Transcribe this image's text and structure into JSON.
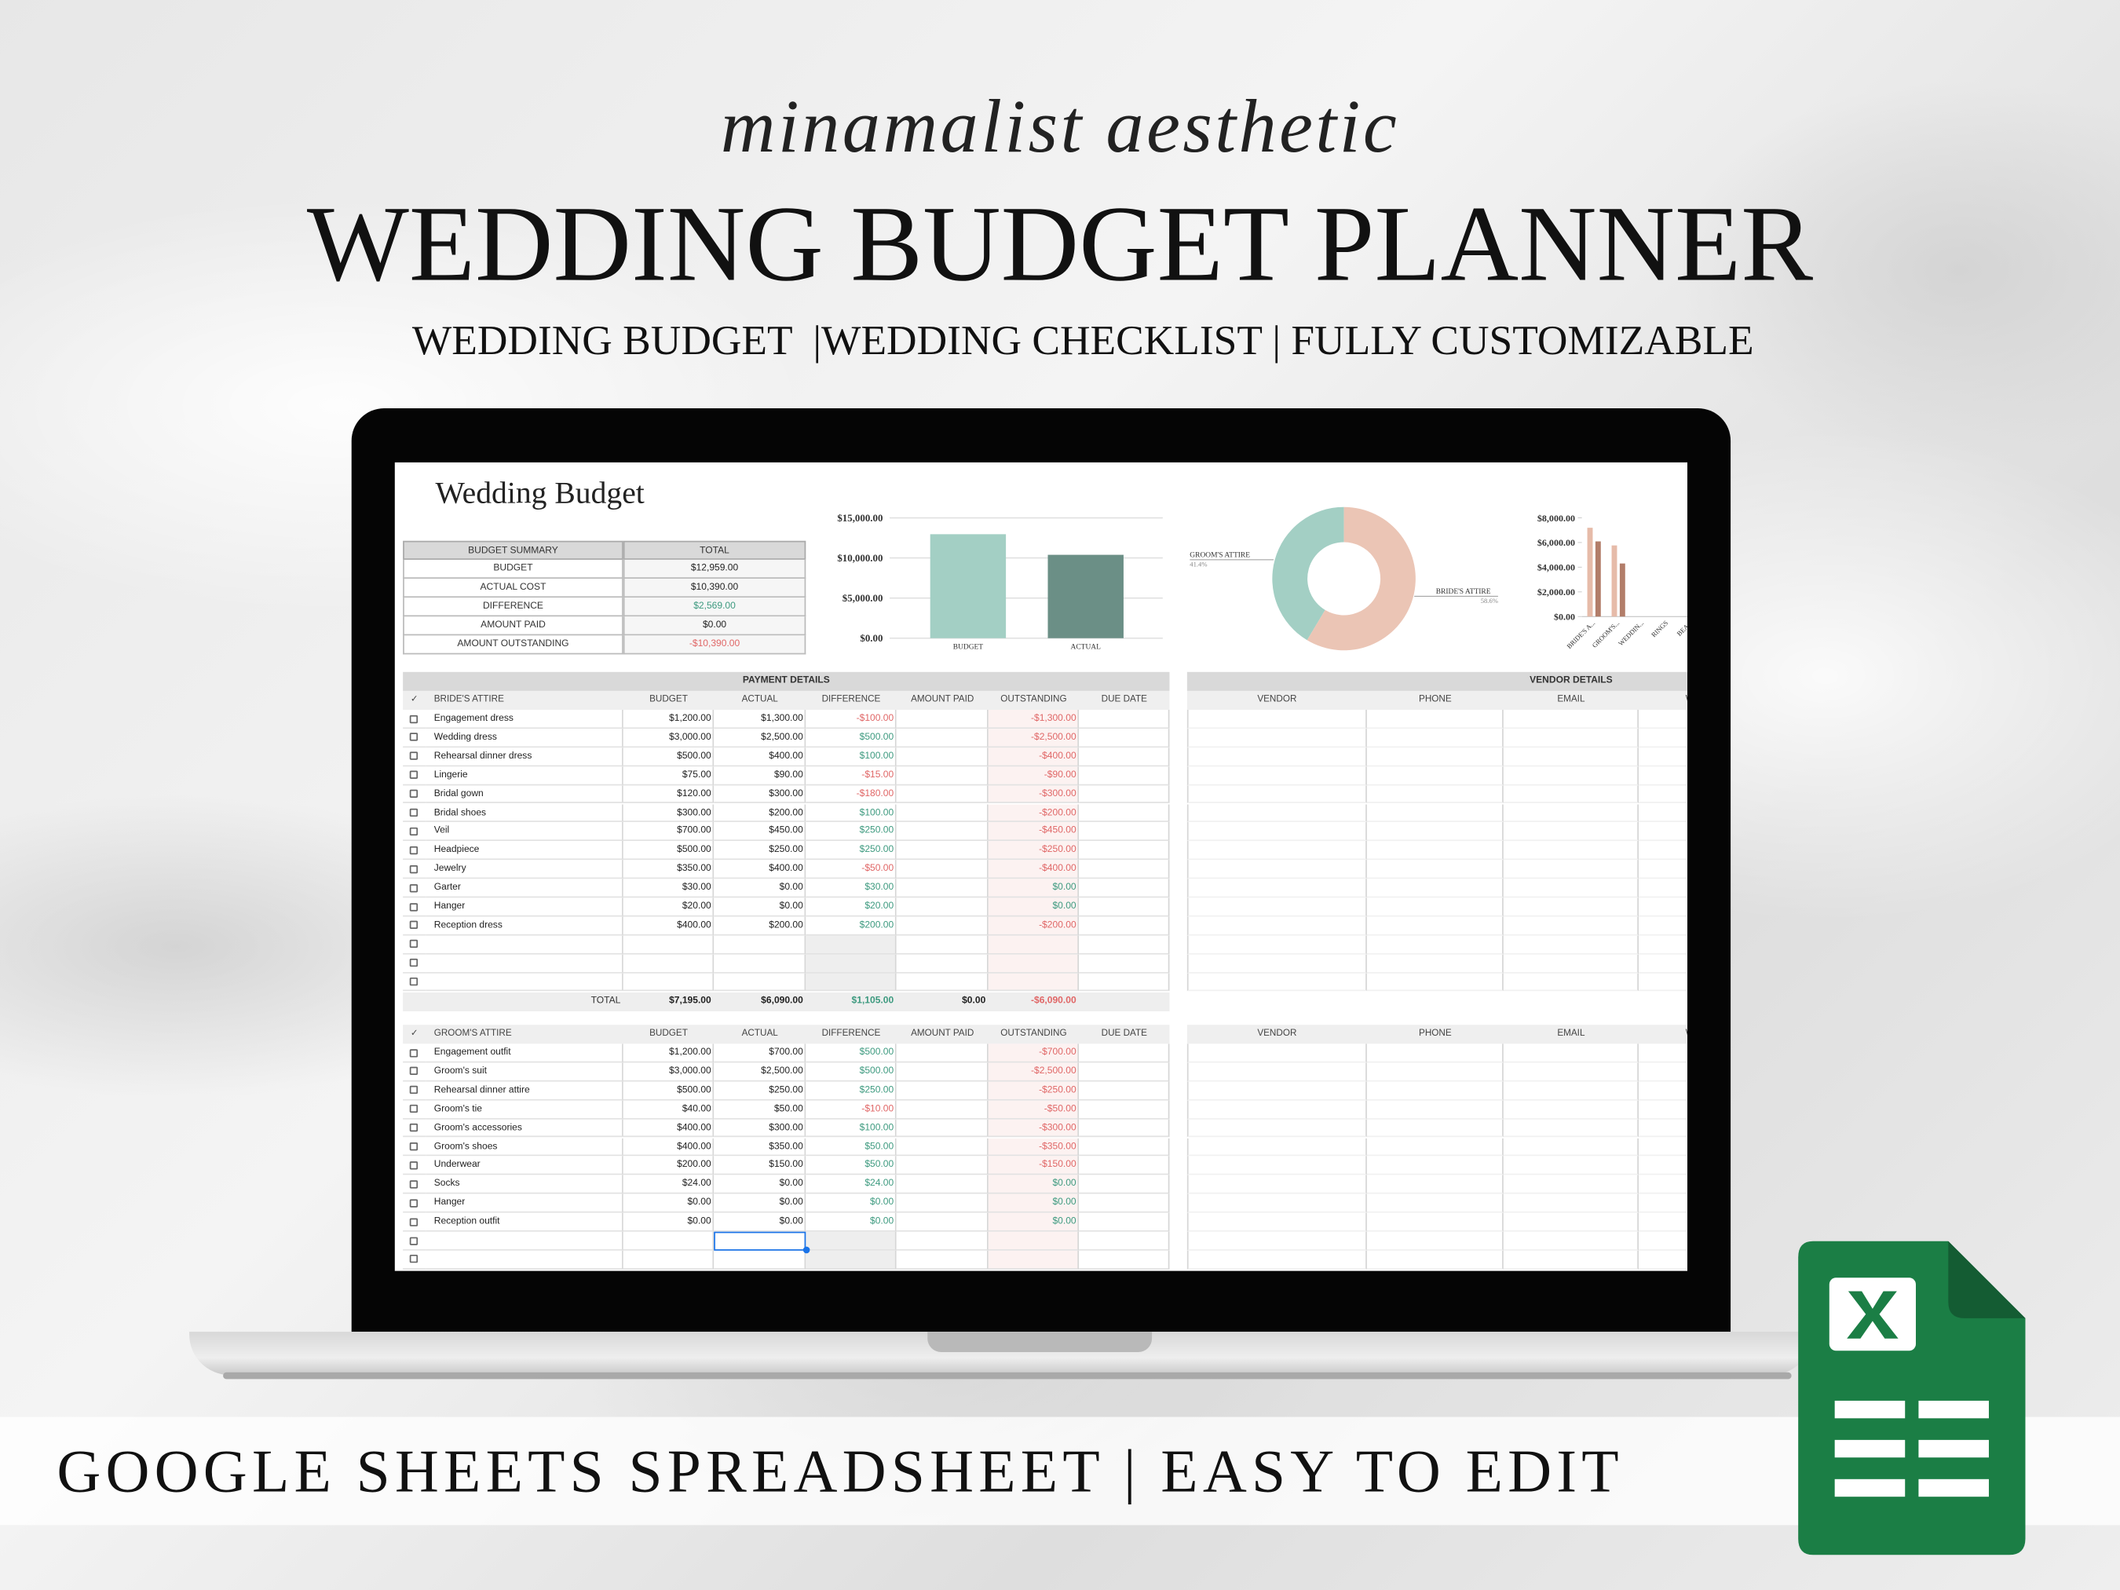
{
  "header": {
    "script": "minamalist aesthetic",
    "title": "WEDDING BUDGET PLANNER",
    "subtitle": "WEDDING BUDGET  |WEDDING CHECKLIST | FULLY CUSTOMIZABLE"
  },
  "sheet": {
    "title": "Wedding Budget",
    "summary": {
      "headers": [
        "BUDGET SUMMARY",
        "TOTAL"
      ],
      "rows": [
        [
          "BUDGET",
          "$12,959.00"
        ],
        [
          "ACTUAL COST",
          "$10,390.00"
        ],
        [
          "DIFFERENCE",
          "$2,569.00"
        ],
        [
          "AMOUNT PAID",
          "$0.00"
        ],
        [
          "AMOUNT OUTSTANDING",
          "-$10,390.00"
        ]
      ]
    },
    "budget_chart": {
      "type": "bar",
      "categories": [
        "BUDGET",
        "ACTUAL"
      ],
      "values": [
        12959,
        10390
      ],
      "colors": [
        "#a3cfc4",
        "#6b8f86"
      ],
      "ylim": [
        0,
        15000
      ],
      "yticks": [
        {
          "value": 0,
          "label": "$0.00"
        },
        {
          "value": 5000,
          "label": "$5,000.00"
        },
        {
          "value": 10000,
          "label": "$10,000.00"
        },
        {
          "value": 15000,
          "label": "$15,000.00"
        }
      ]
    },
    "attire_chart": {
      "type": "pie",
      "categories": [
        "GROOM'S ATTIRE",
        "BRIDE'S ATTIRE"
      ],
      "values": [
        41.4,
        58.6
      ],
      "value_labels": [
        "41.4%",
        "58.6%"
      ],
      "colors": [
        "#a3cfc4",
        "#ebc5b5"
      ]
    },
    "category_chart": {
      "type": "bar",
      "categories": [
        "BRIDE'S A...",
        "GROOM'S...",
        "WEDDIN...",
        "RINGS",
        "BEA..."
      ],
      "series": [
        {
          "color": "#e6bba9",
          "values": [
            7195,
            5764,
            0,
            0,
            0
          ]
        },
        {
          "color": "#b27d69",
          "values": [
            6090,
            4300,
            0,
            0,
            0
          ]
        }
      ],
      "ylim": [
        0,
        8000
      ],
      "yticks": [
        {
          "value": 0,
          "label": "$0.00"
        },
        {
          "value": 2000,
          "label": "$2,000.00"
        },
        {
          "value": 4000,
          "label": "$4,000.00"
        },
        {
          "value": 6000,
          "label": "$6,000.00"
        },
        {
          "value": 8000,
          "label": "$8,000.00"
        }
      ]
    },
    "payment": {
      "title": "PAYMENT DETAILS",
      "sections": [
        {
          "headers": [
            "✓",
            "BRIDE'S ATTIRE",
            "BUDGET",
            "ACTUAL",
            "DIFFERENCE",
            "AMOUNT PAID",
            "OUTSTANDING",
            "DUE DATE"
          ],
          "rows": [
            {
              "item": "Engagement dress",
              "budget": "$1,200.00",
              "actual": "$1,300.00",
              "difference": "-$100.00",
              "outstanding": "-$1,300.00"
            },
            {
              "item": "Wedding dress",
              "budget": "$3,000.00",
              "actual": "$2,500.00",
              "difference": "$500.00",
              "outstanding": "-$2,500.00"
            },
            {
              "item": "Rehearsal dinner dress",
              "budget": "$500.00",
              "actual": "$400.00",
              "difference": "$100.00",
              "outstanding": "-$400.00"
            },
            {
              "item": "Lingerie",
              "budget": "$75.00",
              "actual": "$90.00",
              "difference": "-$15.00",
              "outstanding": "-$90.00"
            },
            {
              "item": "Bridal gown",
              "budget": "$120.00",
              "actual": "$300.00",
              "difference": "-$180.00",
              "outstanding": "-$300.00"
            },
            {
              "item": "Bridal shoes",
              "budget": "$300.00",
              "actual": "$200.00",
              "difference": "$100.00",
              "outstanding": "-$200.00"
            },
            {
              "item": "Veil",
              "budget": "$700.00",
              "actual": "$450.00",
              "difference": "$250.00",
              "outstanding": "-$450.00"
            },
            {
              "item": "Headpiece",
              "budget": "$500.00",
              "actual": "$250.00",
              "difference": "$250.00",
              "outstanding": "-$250.00"
            },
            {
              "item": "Jewelry",
              "budget": "$350.00",
              "actual": "$400.00",
              "difference": "-$50.00",
              "outstanding": "-$400.00"
            },
            {
              "item": "Garter",
              "budget": "$30.00",
              "actual": "$0.00",
              "difference": "$30.00",
              "outstanding": "$0.00"
            },
            {
              "item": "Hanger",
              "budget": "$20.00",
              "actual": "$0.00",
              "difference": "$20.00",
              "outstanding": "$0.00"
            },
            {
              "item": "Reception dress",
              "budget": "$400.00",
              "actual": "$200.00",
              "difference": "$200.00",
              "outstanding": "-$200.00"
            }
          ],
          "total": {
            "label": "TOTAL",
            "budget": "$7,195.00",
            "actual": "$6,090.00",
            "difference": "$1,105.00",
            "amount_paid": "$0.00",
            "outstanding": "-$6,090.00"
          }
        },
        {
          "headers": [
            "✓",
            "GROOM'S ATTIRE",
            "BUDGET",
            "ACTUAL",
            "DIFFERENCE",
            "AMOUNT PAID",
            "OUTSTANDING",
            "DUE DATE"
          ],
          "rows": [
            {
              "item": "Engagement outfit",
              "budget": "$1,200.00",
              "actual": "$700.00",
              "difference": "$500.00",
              "outstanding": "-$700.00"
            },
            {
              "item": "Groom's suit",
              "budget": "$3,000.00",
              "actual": "$2,500.00",
              "difference": "$500.00",
              "outstanding": "-$2,500.00"
            },
            {
              "item": "Rehearsal dinner attire",
              "budget": "$500.00",
              "actual": "$250.00",
              "difference": "$250.00",
              "outstanding": "-$250.00"
            },
            {
              "item": "Groom's tie",
              "budget": "$40.00",
              "actual": "$50.00",
              "difference": "-$10.00",
              "outstanding": "-$50.00"
            },
            {
              "item": "Groom's accessories",
              "budget": "$400.00",
              "actual": "$300.00",
              "difference": "$100.00",
              "outstanding": "-$300.00"
            },
            {
              "item": "Groom's shoes",
              "budget": "$400.00",
              "actual": "$350.00",
              "difference": "$50.00",
              "outstanding": "-$350.00"
            },
            {
              "item": "Underwear",
              "budget": "$200.00",
              "actual": "$150.00",
              "difference": "$50.00",
              "outstanding": "-$150.00"
            },
            {
              "item": "Socks",
              "budget": "$24.00",
              "actual": "$0.00",
              "difference": "$24.00",
              "outstanding": "$0.00"
            },
            {
              "item": "Hanger",
              "budget": "$0.00",
              "actual": "$0.00",
              "difference": "$0.00",
              "outstanding": "$0.00"
            },
            {
              "item": "Reception outfit",
              "budget": "$0.00",
              "actual": "$0.00",
              "difference": "$0.00",
              "outstanding": "$0.00"
            }
          ]
        }
      ]
    },
    "vendor": {
      "title": "VENDOR DETAILS",
      "sections": [
        {
          "headers": [
            "VENDOR",
            "PHONE",
            "EMAIL",
            "WEBSITE"
          ]
        },
        {
          "headers": [
            "VENDOR",
            "PHONE",
            "EMAIL",
            "WEBSITE"
          ]
        }
      ]
    }
  },
  "footer": {
    "banner": "GOOGLE SHEETS SPREADSHEET | EASY TO EDIT"
  }
}
